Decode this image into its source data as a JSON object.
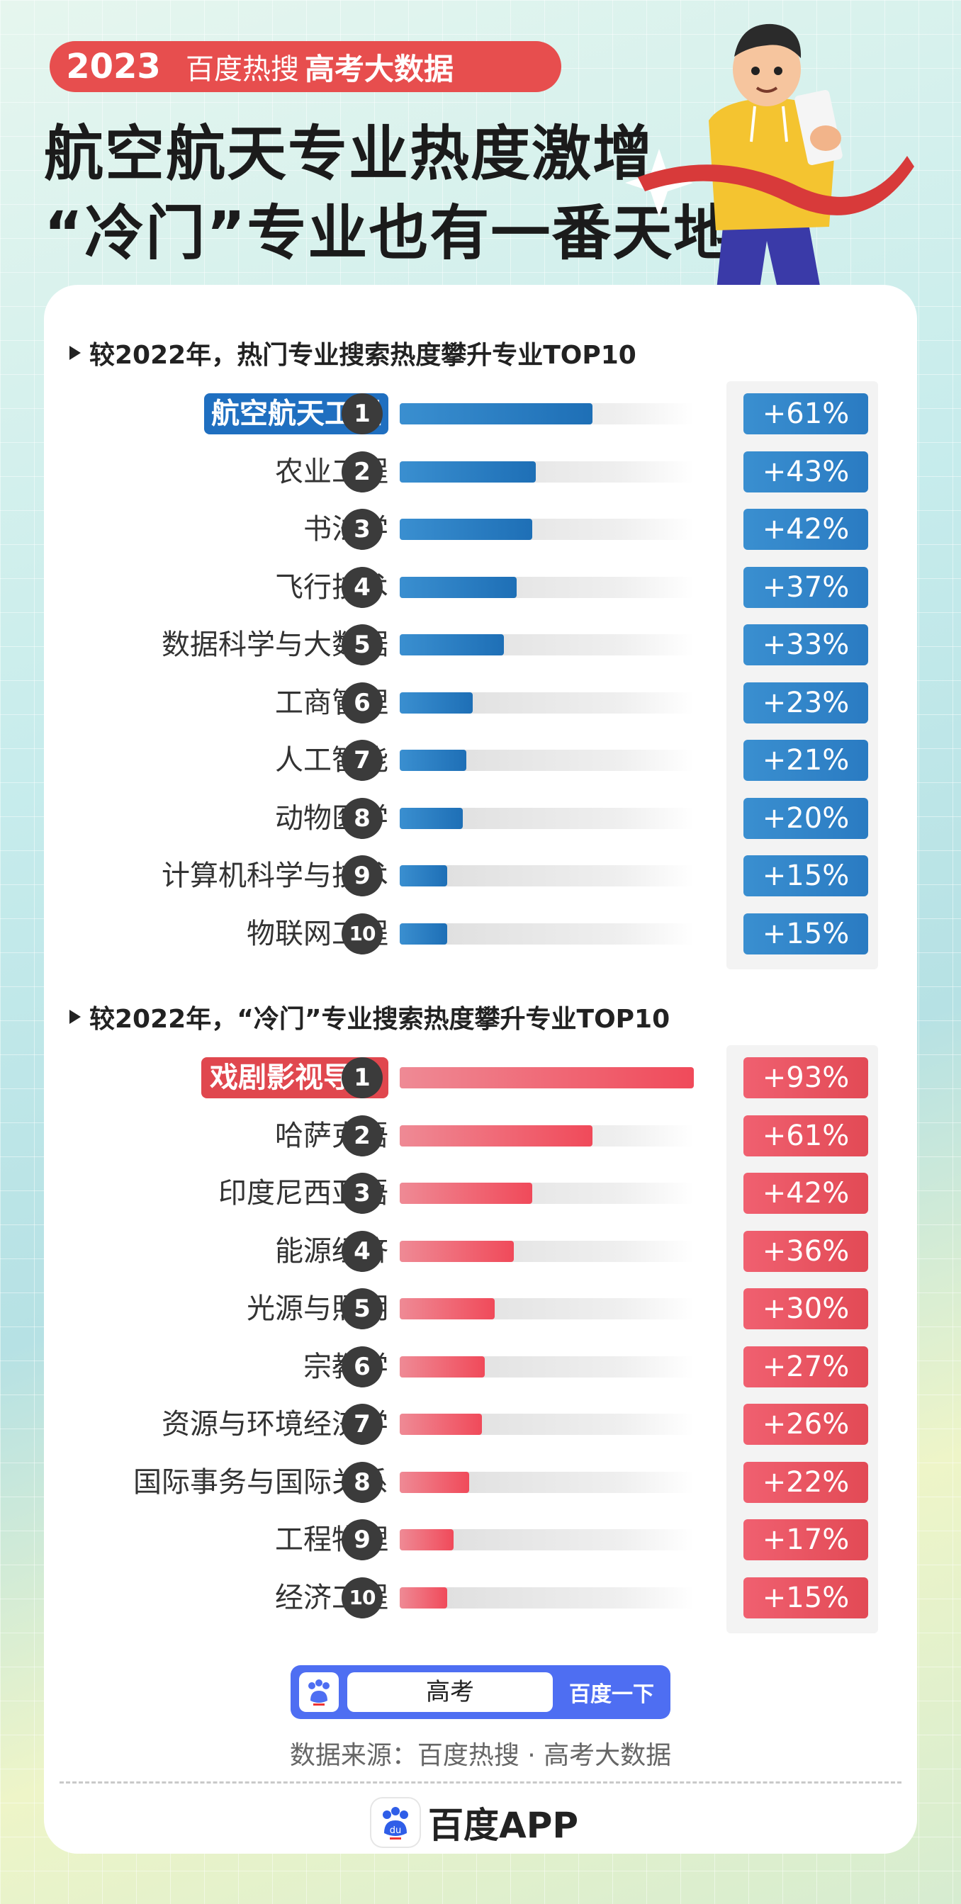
{
  "header": {
    "year": "2023",
    "source": "百度热搜",
    "highlight": "高考大数据",
    "headline1": "航空航天专业热度激增",
    "headline2": "“冷门”专业也有一番天地"
  },
  "colors": {
    "blue": "#2a7bc2",
    "red": "#e24a55",
    "tag": "#e74e4e"
  },
  "chart_data": [
    {
      "type": "bar",
      "title": "较2022年，热门专业搜索热度攀升专业TOP10",
      "categories": [
        "航空航天工程",
        "农业工程",
        "书法学",
        "飞行技术",
        "数据科学与大数据",
        "工商管理",
        "人工智能",
        "动物医学",
        "计算机科学与技术",
        "物联网工程"
      ],
      "ranks": [
        "1",
        "2",
        "3",
        "4",
        "5",
        "6",
        "7",
        "8",
        "9",
        "10"
      ],
      "values": [
        61,
        43,
        42,
        37,
        33,
        23,
        21,
        20,
        15,
        15
      ],
      "value_labels": [
        "+61%",
        "+43%",
        "+42%",
        "+37%",
        "+33%",
        "+23%",
        "+21%",
        "+20%",
        "+15%",
        "+15%"
      ],
      "color": "blue",
      "unit": "%"
    },
    {
      "type": "bar",
      "title": "较2022年，“冷门”专业搜索热度攀升专业TOP10",
      "categories": [
        "戏剧影视导演",
        "哈萨克语",
        "印度尼西亚语",
        "能源经济",
        "光源与照明",
        "宗教学",
        "资源与环境经济学",
        "国际事务与国际关系",
        "工程物理",
        "经济工程"
      ],
      "ranks": [
        "1",
        "2",
        "3",
        "4",
        "5",
        "6",
        "7",
        "8",
        "9",
        "10"
      ],
      "values": [
        93,
        61,
        42,
        36,
        30,
        27,
        26,
        22,
        17,
        15
      ],
      "value_labels": [
        "+93%",
        "+61%",
        "+42%",
        "+36%",
        "+30%",
        "+27%",
        "+26%",
        "+22%",
        "+17%",
        "+15%"
      ],
      "color": "red",
      "unit": "%"
    }
  ],
  "footer": {
    "search_query": "高考",
    "search_button": "百度一下",
    "source": "数据来源：百度热搜 · 高考大数据",
    "app_name": "百度APP",
    "logo_text": "du"
  }
}
